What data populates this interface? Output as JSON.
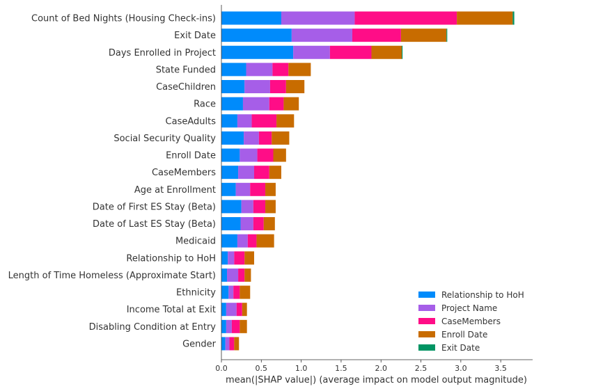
{
  "chart_data": {
    "type": "bar",
    "stacked": true,
    "orientation": "horizontal",
    "title": "",
    "xlabel": "mean(|SHAP value|) (average impact on model output magnitude)",
    "ylabel": "",
    "xlim": [
      0,
      3.9
    ],
    "xticks": [
      0.0,
      0.5,
      1.0,
      1.5,
      2.0,
      2.5,
      3.0,
      3.5
    ],
    "xtick_labels": [
      "0.0",
      "0.5",
      "1.0",
      "1.5",
      "2.0",
      "2.5",
      "3.0",
      "3.5"
    ],
    "grid": false,
    "legend_position": "bottom-right",
    "categories": [
      "Count of Bed Nights (Housing Check-ins)",
      "Exit Date",
      "Days Enrolled in Project",
      "State Funded",
      "CaseChildren",
      "Race",
      "CaseAdults",
      "Social Security Quality",
      "Enroll Date",
      "CaseMembers",
      "Age at Enrollment",
      "Date of First ES Stay (Beta)",
      "Date of Last ES Stay (Beta)",
      "Medicaid",
      "Relationship to HoH",
      "Length of Time Homeless (Approximate Start)",
      "Ethnicity",
      "Income Total at Exit",
      "Disabling Condition at Entry",
      "Gender"
    ],
    "series": [
      {
        "name": "Relationship to HoH",
        "color": "#008bfb",
        "values": [
          0.75,
          0.88,
          0.9,
          0.31,
          0.29,
          0.27,
          0.2,
          0.28,
          0.23,
          0.21,
          0.18,
          0.25,
          0.24,
          0.2,
          0.08,
          0.07,
          0.09,
          0.06,
          0.06,
          0.05
        ]
      },
      {
        "name": "Project Name",
        "color": "#a65ee8",
        "values": [
          0.92,
          0.76,
          0.46,
          0.33,
          0.32,
          0.33,
          0.18,
          0.19,
          0.22,
          0.2,
          0.18,
          0.15,
          0.16,
          0.13,
          0.08,
          0.14,
          0.06,
          0.13,
          0.07,
          0.05
        ]
      },
      {
        "name": "CaseMembers",
        "color": "#ff0d87",
        "values": [
          1.28,
          0.61,
          0.52,
          0.2,
          0.2,
          0.18,
          0.31,
          0.16,
          0.2,
          0.19,
          0.19,
          0.15,
          0.13,
          0.11,
          0.13,
          0.08,
          0.08,
          0.07,
          0.1,
          0.06
        ]
      },
      {
        "name": "Enroll Date",
        "color": "#c86c00",
        "values": [
          0.7,
          0.57,
          0.38,
          0.28,
          0.23,
          0.19,
          0.22,
          0.22,
          0.16,
          0.15,
          0.13,
          0.13,
          0.14,
          0.22,
          0.12,
          0.08,
          0.13,
          0.06,
          0.09,
          0.06
        ]
      },
      {
        "name": "Exit Date",
        "color": "#009463",
        "values": [
          0.02,
          0.01,
          0.01,
          0.0,
          0.0,
          0.0,
          0.0,
          0.0,
          0.0,
          0.0,
          0.0,
          0.0,
          0.0,
          0.0,
          0.0,
          0.0,
          0.0,
          0.0,
          0.0,
          0.0
        ]
      }
    ]
  }
}
